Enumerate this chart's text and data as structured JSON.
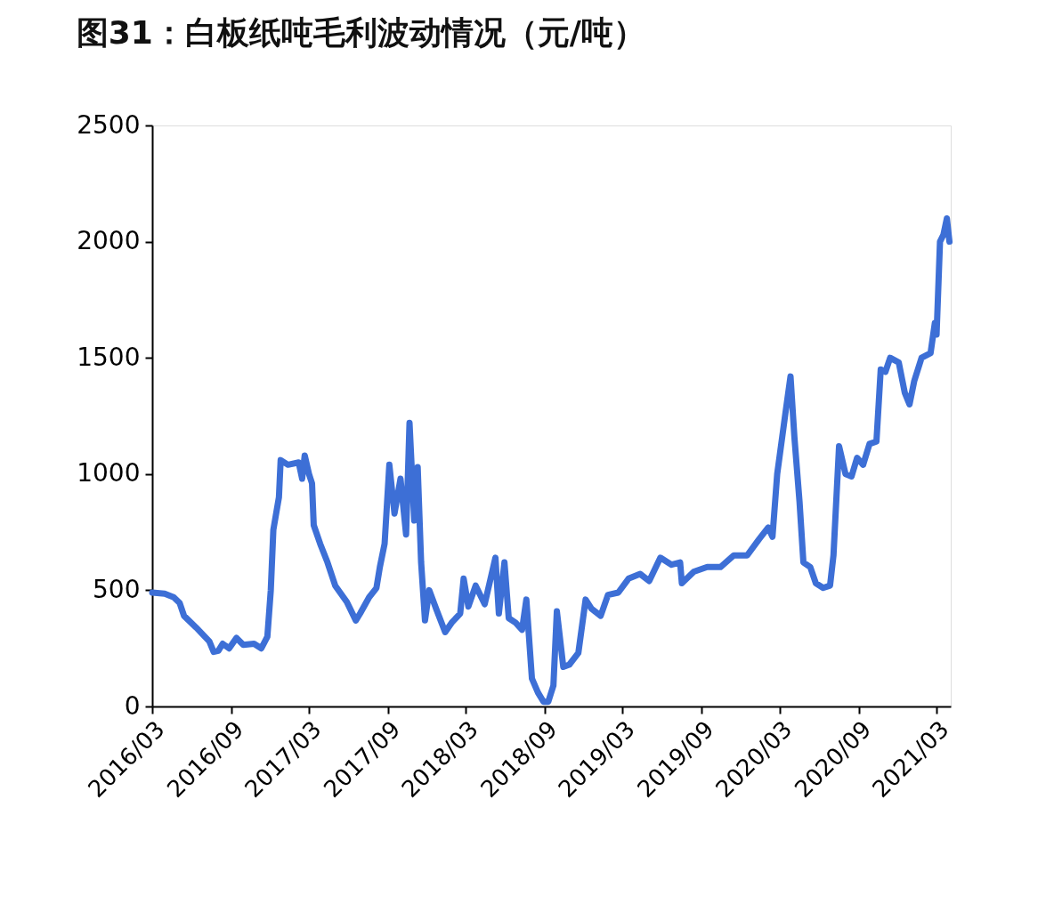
{
  "chart_data": {
    "type": "line",
    "title": "图31：白板纸吨毛利波动情况（元/吨）",
    "xlim": [
      "2016-03-01",
      "2021-04-03"
    ],
    "xticks": [
      {
        "value": "2016-03-01",
        "label": "2016/03"
      },
      {
        "value": "2016-09-01",
        "label": "2016/09"
      },
      {
        "value": "2017-03-01",
        "label": "2017/03"
      },
      {
        "value": "2017-09-01",
        "label": "2017/09"
      },
      {
        "value": "2018-03-01",
        "label": "2018/03"
      },
      {
        "value": "2018-09-01",
        "label": "2018/09"
      },
      {
        "value": "2019-03-01",
        "label": "2019/03"
      },
      {
        "value": "2019-09-01",
        "label": "2019/09"
      },
      {
        "value": "2020-03-01",
        "label": "2020/03"
      },
      {
        "value": "2020-09-01",
        "label": "2020/09"
      },
      {
        "value": "2021-03-01",
        "label": "2021/03"
      }
    ],
    "ylim": [
      0,
      2500
    ],
    "yticks": [
      0,
      500,
      1000,
      1500,
      2000,
      2500
    ],
    "grid": false,
    "x": [
      "2016-03-01",
      "2016-03-30",
      "2016-04-20",
      "2016-05-04",
      "2016-05-14",
      "2016-06-11",
      "2016-07-12",
      "2016-07-22",
      "2016-08-02",
      "2016-08-12",
      "2016-08-27",
      "2016-09-13",
      "2016-09-29",
      "2016-10-24",
      "2016-11-10",
      "2016-11-24",
      "2016-12-02",
      "2016-12-08",
      "2016-12-21",
      "2016-12-25",
      "2017-01-11",
      "2017-02-05",
      "2017-02-13",
      "2017-02-19",
      "2017-03-01",
      "2017-03-08",
      "2017-03-12",
      "2017-03-27",
      "2017-04-13",
      "2017-05-01",
      "2017-05-28",
      "2017-06-18",
      "2017-06-28",
      "2017-07-19",
      "2017-08-05",
      "2017-08-13",
      "2017-08-24",
      "2017-09-04",
      "2017-09-16",
      "2017-09-30",
      "2017-10-13",
      "2017-10-21",
      "2017-11-01",
      "2017-11-09",
      "2017-11-17",
      "2017-11-26",
      "2017-12-06",
      "2017-12-22",
      "2018-01-12",
      "2018-01-27",
      "2018-02-16",
      "2018-02-24",
      "2018-03-07",
      "2018-03-24",
      "2018-04-14",
      "2018-05-09",
      "2018-05-17",
      "2018-05-30",
      "2018-06-09",
      "2018-06-25",
      "2018-07-10",
      "2018-07-20",
      "2018-08-02",
      "2018-08-16",
      "2018-08-29",
      "2018-09-09",
      "2018-09-21",
      "2018-09-29",
      "2018-10-14",
      "2018-10-28",
      "2018-11-18",
      "2018-12-05",
      "2018-12-19",
      "2019-01-09",
      "2019-01-26",
      "2019-02-19",
      "2019-03-15",
      "2019-04-11",
      "2019-05-02",
      "2019-05-28",
      "2019-06-23",
      "2019-07-13",
      "2019-07-17",
      "2019-08-14",
      "2019-09-14",
      "2019-10-15",
      "2019-11-15",
      "2019-12-16",
      "2020-01-13",
      "2020-02-03",
      "2020-02-13",
      "2020-02-24",
      "2020-03-14",
      "2020-03-26",
      "2020-04-04",
      "2020-04-16",
      "2020-04-25",
      "2020-05-11",
      "2020-05-24",
      "2020-06-10",
      "2020-06-26",
      "2020-07-04",
      "2020-07-17",
      "2020-08-01",
      "2020-08-15",
      "2020-08-28",
      "2020-09-11",
      "2020-09-26",
      "2020-10-12",
      "2020-10-22",
      "2020-11-02",
      "2020-11-13",
      "2020-12-03",
      "2020-12-17",
      "2020-12-28",
      "2021-01-08",
      "2021-01-25",
      "2021-02-15",
      "2021-02-25",
      "2021-03-01",
      "2021-03-09",
      "2021-03-17",
      "2021-03-25",
      "2021-03-31"
    ],
    "series": [
      {
        "color": "#3d6fd6",
        "values": [
          490,
          485,
          470,
          445,
          390,
          340,
          280,
          235,
          240,
          270,
          250,
          295,
          265,
          270,
          250,
          300,
          500,
          760,
          900,
          1060,
          1040,
          1050,
          980,
          1080,
          1000,
          960,
          780,
          700,
          620,
          520,
          450,
          370,
          400,
          470,
          510,
          600,
          700,
          1040,
          830,
          980,
          740,
          1220,
          800,
          1030,
          620,
          370,
          500,
          420,
          320,
          360,
          400,
          550,
          430,
          520,
          440,
          640,
          400,
          620,
          380,
          360,
          330,
          460,
          120,
          60,
          20,
          20,
          90,
          410,
          170,
          180,
          230,
          460,
          420,
          390,
          480,
          490,
          550,
          570,
          540,
          640,
          610,
          620,
          530,
          580,
          600,
          600,
          650,
          650,
          720,
          770,
          730,
          1000,
          1260,
          1420,
          1160,
          880,
          620,
          600,
          530,
          510,
          520,
          650,
          1120,
          1000,
          990,
          1070,
          1040,
          1130,
          1140,
          1450,
          1440,
          1500,
          1480,
          1350,
          1300,
          1400,
          1500,
          1520,
          1650,
          1600,
          2000,
          2030,
          2100,
          2000
        ]
      }
    ]
  }
}
